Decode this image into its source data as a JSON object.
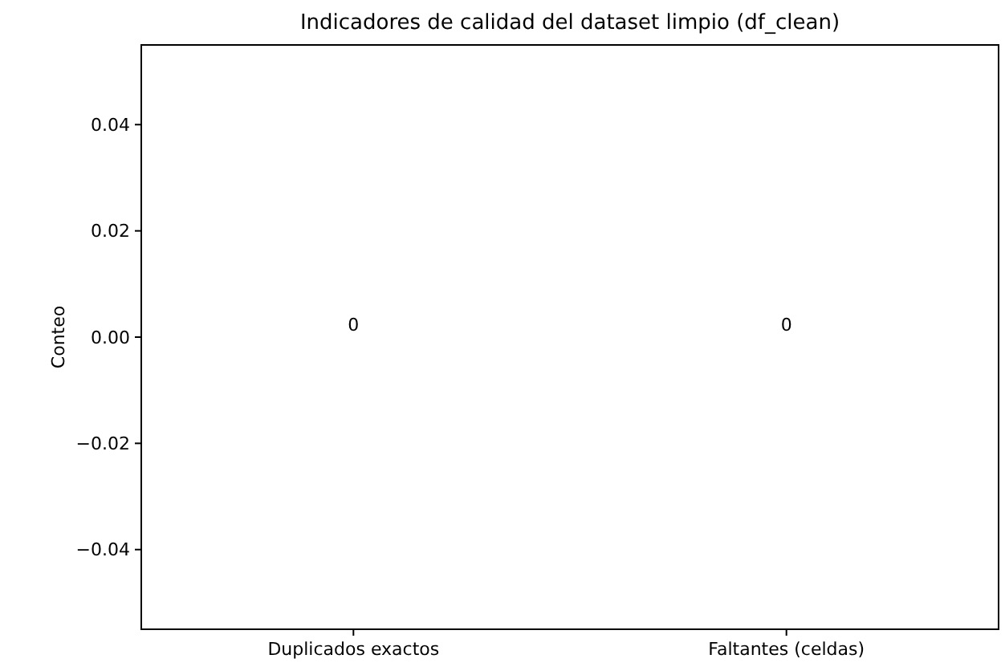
{
  "chart_data": {
    "type": "bar",
    "title": "Indicadores de calidad del dataset limpio (df_clean)",
    "ylabel": "Conteo",
    "categories": [
      "Duplicados exactos",
      "Faltantes (celdas)"
    ],
    "values": [
      0,
      0
    ],
    "ylim": [
      -0.055,
      0.055
    ],
    "yticks": [
      {
        "value": -0.04,
        "label": "−0.04"
      },
      {
        "value": -0.02,
        "label": "−0.02"
      },
      {
        "value": 0,
        "label": "0.00"
      },
      {
        "value": 0.02,
        "label": "0.02"
      },
      {
        "value": 0.04,
        "label": "0.04"
      }
    ],
    "data_labels": true
  }
}
